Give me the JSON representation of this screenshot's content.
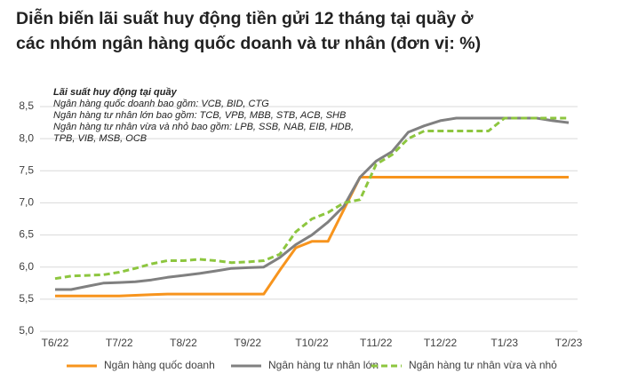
{
  "chart_data": {
    "type": "line",
    "title": [
      "Diễn biến lãi suất huy động tiền gửi 12 tháng tại quầy ở",
      "các nhóm ngân hàng quốc doanh và tư nhân (đơn vị: %)"
    ],
    "annotations": [
      "Lãi suất huy động tại quầy",
      "Ngân hàng quốc doanh bao gồm: VCB, BID, CTG",
      "Ngân hàng tư nhân lớn bao gồm: TCB, VPB, MBB, STB, ACB, SHB",
      "Ngân hàng tư nhân vừa và nhỏ bao gồm: LPB, SSB, NAB, EIB, HDB,",
      "TPB, VIB, MSB, OCB"
    ],
    "categories": [
      "T6/22",
      null,
      null,
      null,
      "T7/22",
      null,
      null,
      null,
      "T8/22",
      null,
      null,
      null,
      "T9/22",
      null,
      null,
      null,
      "T10/22",
      null,
      null,
      null,
      "T11/22",
      null,
      null,
      null,
      "T12/22",
      null,
      null,
      null,
      "T1/23",
      null,
      null,
      null,
      "T2/23"
    ],
    "series": [
      {
        "name": "Ngân hàng quốc doanh",
        "color": "#f7941d",
        "dash": false,
        "values": [
          5.55,
          5.55,
          5.55,
          5.55,
          5.55,
          5.56,
          5.57,
          5.58,
          5.58,
          5.58,
          5.58,
          5.58,
          5.58,
          5.58,
          5.95,
          6.3,
          6.4,
          6.4,
          6.9,
          7.4,
          7.4,
          7.4,
          7.4,
          7.4,
          7.4,
          7.4,
          7.4,
          7.4,
          7.4,
          7.4,
          7.4,
          7.4,
          7.4
        ]
      },
      {
        "name": "Ngân hàng tư nhân lớn",
        "color": "#808080",
        "dash": false,
        "values": [
          5.65,
          5.65,
          5.7,
          5.75,
          5.76,
          5.77,
          5.8,
          5.84,
          5.87,
          5.9,
          5.94,
          5.98,
          5.99,
          6.0,
          6.15,
          6.35,
          6.5,
          6.7,
          6.95,
          7.4,
          7.65,
          7.8,
          8.1,
          8.2,
          8.28,
          8.32,
          8.32,
          8.32,
          8.32,
          8.32,
          8.32,
          8.28,
          8.25
        ]
      },
      {
        "name": "Ngân hàng tư nhân vừa và nhỏ",
        "color": "#8dc63f",
        "dash": true,
        "values": [
          5.82,
          5.86,
          5.87,
          5.88,
          5.92,
          5.98,
          6.05,
          6.1,
          6.1,
          6.12,
          6.1,
          6.07,
          6.08,
          6.1,
          6.2,
          6.55,
          6.75,
          6.85,
          7.0,
          7.05,
          7.6,
          7.75,
          8.0,
          8.12,
          8.12,
          8.12,
          8.12,
          8.12,
          8.32,
          8.32,
          8.32,
          8.32,
          8.32
        ]
      }
    ],
    "ylim": [
      5.0,
      8.5
    ],
    "yticks": [
      {
        "value": 5.0,
        "label": "5,0"
      },
      {
        "value": 5.5,
        "label": "5,5"
      },
      {
        "value": 6.0,
        "label": "6,0"
      },
      {
        "value": 6.5,
        "label": "6,5"
      },
      {
        "value": 7.0,
        "label": "7,0"
      },
      {
        "value": 7.5,
        "label": "7,5"
      },
      {
        "value": 8.0,
        "label": "8,0"
      },
      {
        "value": 8.5,
        "label": "8,5"
      }
    ],
    "grid": true,
    "legend": "bottom"
  }
}
